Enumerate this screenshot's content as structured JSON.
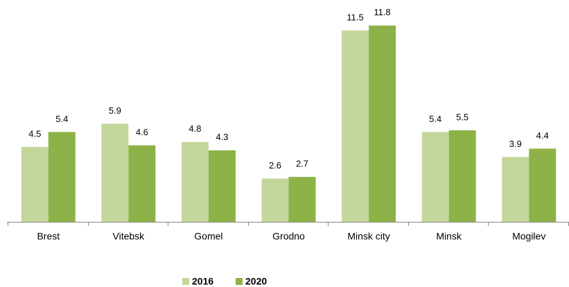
{
  "chart_data": {
    "type": "bar",
    "categories": [
      "Brest",
      "Vitebsk",
      "Gomel",
      "Grodno",
      "Minsk city",
      "Minsk",
      "Mogilev"
    ],
    "series": [
      {
        "name": "2016",
        "color": "#c4d79b",
        "values": [
          4.5,
          5.9,
          4.8,
          2.6,
          11.5,
          5.4,
          3.9
        ]
      },
      {
        "name": "2020",
        "color": "#8db248",
        "values": [
          5.4,
          4.6,
          4.3,
          2.7,
          11.8,
          5.5,
          4.4
        ]
      }
    ],
    "ylim": [
      0,
      13
    ],
    "legend": "bottom"
  }
}
